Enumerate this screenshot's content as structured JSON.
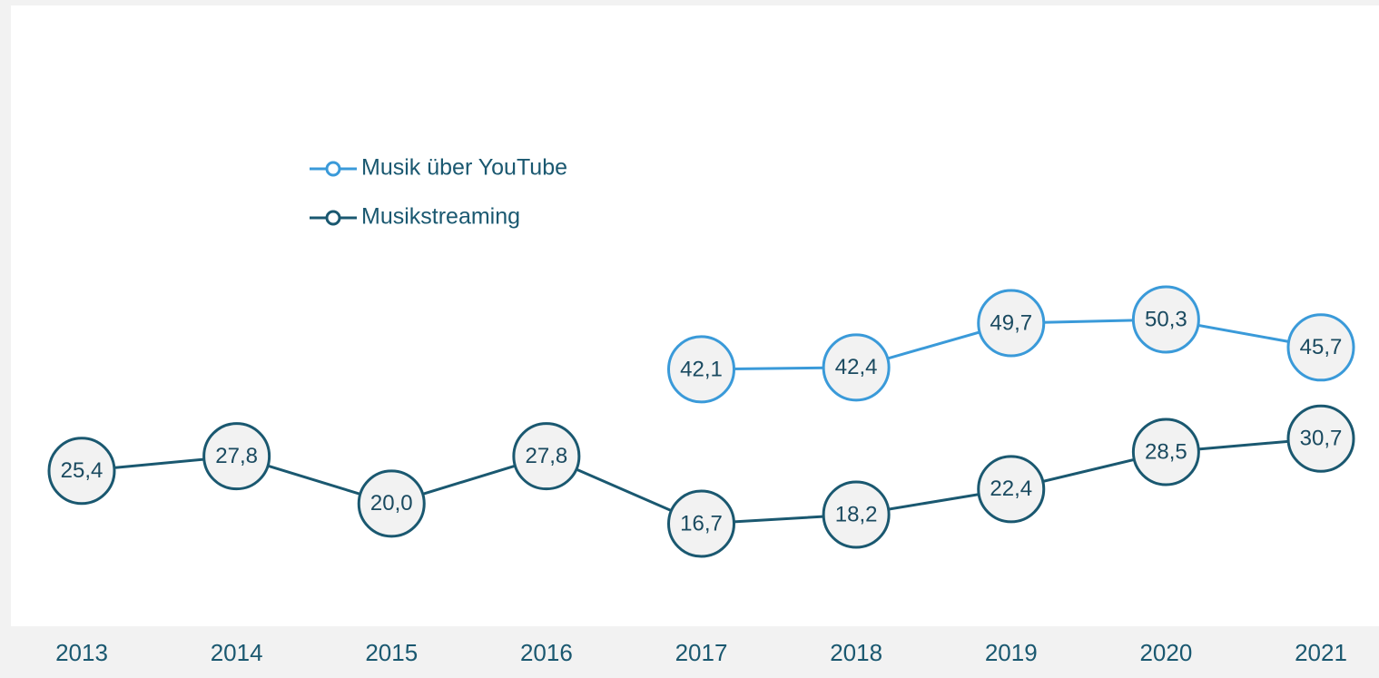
{
  "chart_data": {
    "type": "line",
    "categories": [
      "2013",
      "2014",
      "2015",
      "2016",
      "2017",
      "2018",
      "2019",
      "2020",
      "2021"
    ],
    "series": [
      {
        "name": "Musik über YouTube",
        "color": "#3a9ad9",
        "values": [
          null,
          null,
          null,
          null,
          42.1,
          42.4,
          49.7,
          50.3,
          45.7
        ],
        "value_labels": [
          null,
          null,
          null,
          null,
          "42,1",
          "42,4",
          "49,7",
          "50,3",
          "45,7"
        ]
      },
      {
        "name": "Musikstreaming",
        "color": "#1a5870",
        "values": [
          25.4,
          27.8,
          20.0,
          27.8,
          16.7,
          18.2,
          22.4,
          28.5,
          30.7
        ],
        "value_labels": [
          "25,4",
          "27,8",
          "20,0",
          "27,8",
          "16,7",
          "18,2",
          "22,4",
          "28,5",
          "30,7"
        ]
      }
    ],
    "legend": "upper left"
  }
}
